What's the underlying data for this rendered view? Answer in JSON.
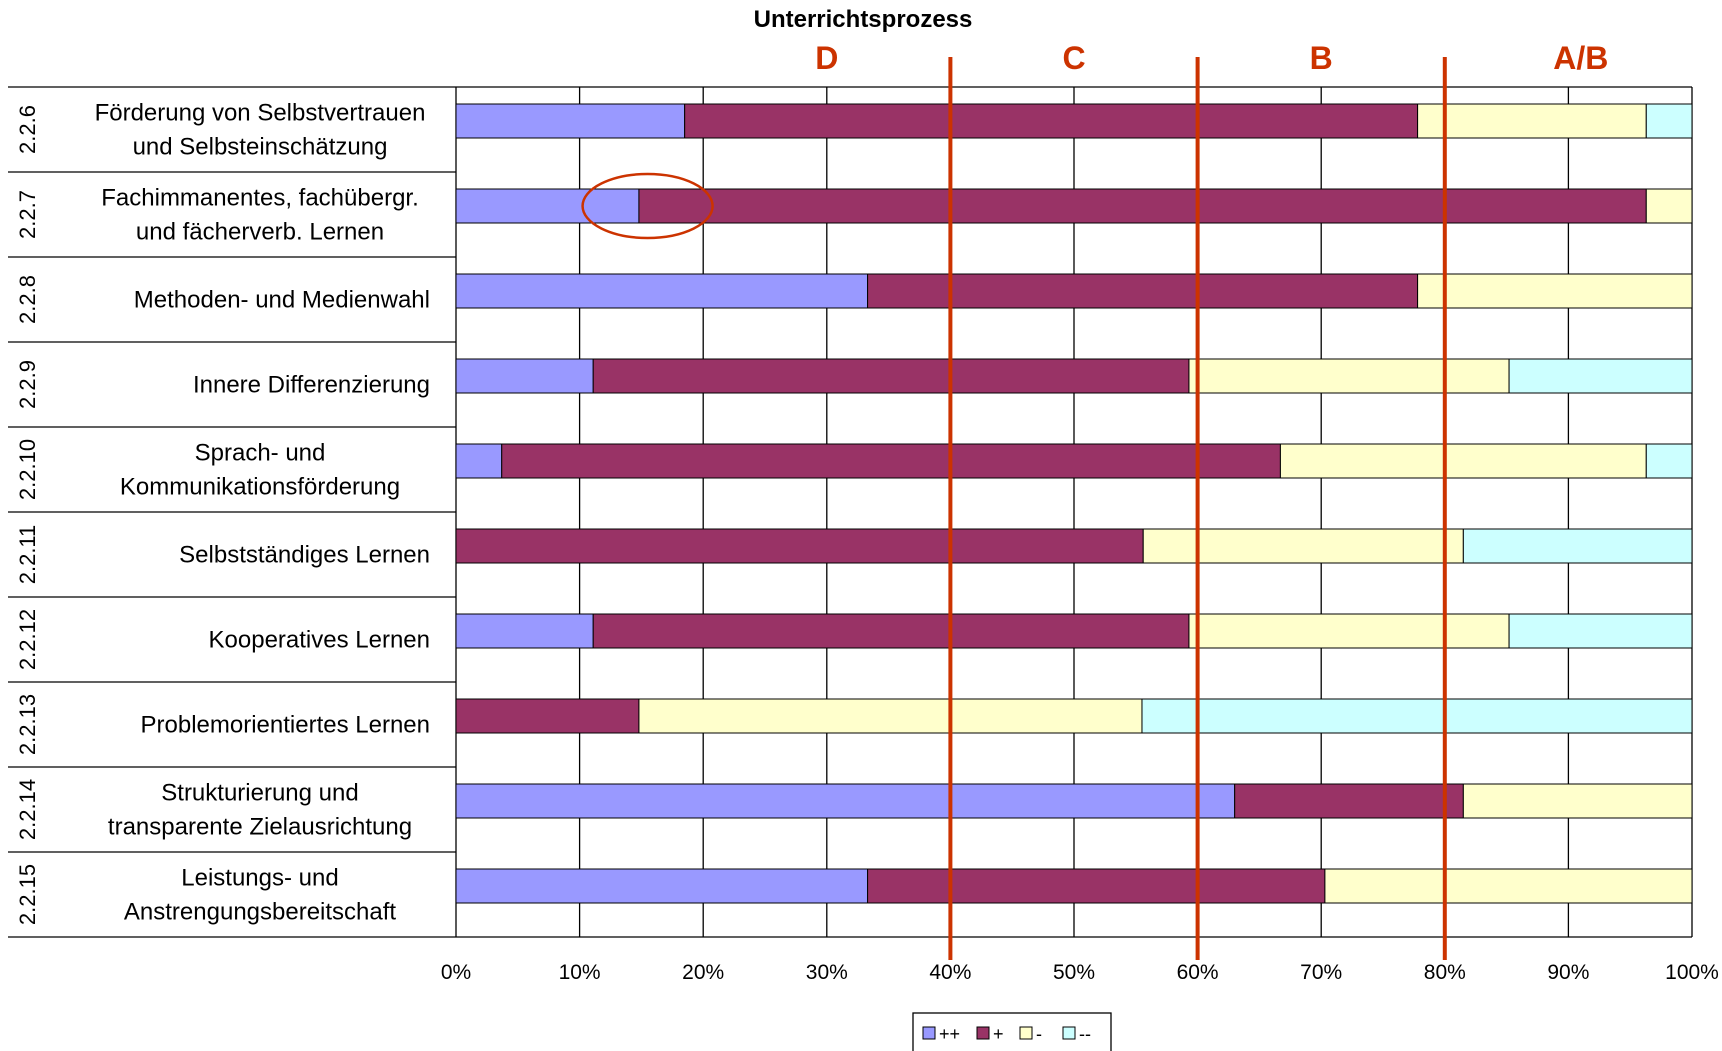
{
  "chart_data": {
    "type": "bar",
    "orientation": "horizontal",
    "stacked": "percent",
    "title": "Unterrichtsprozess",
    "categories": [
      {
        "code": "2.2.6",
        "lines": [
          "Förderung von Selbstvertrauen",
          "und Selbsteinschätzung"
        ]
      },
      {
        "code": "2.2.7",
        "lines": [
          "Fachimmanentes, fachübergr.",
          "und fächerverb. Lernen"
        ]
      },
      {
        "code": "2.2.8",
        "lines": [
          "Methoden- und Medienwahl"
        ]
      },
      {
        "code": "2.2.9",
        "lines": [
          "Innere Differenzierung"
        ]
      },
      {
        "code": "2.2.10",
        "lines": [
          "Sprach- und",
          "Kommunikationsförderung"
        ]
      },
      {
        "code": "2.2.11",
        "lines": [
          "Selbstständiges Lernen"
        ]
      },
      {
        "code": "2.2.12",
        "lines": [
          "Kooperatives Lernen"
        ]
      },
      {
        "code": "2.2.13",
        "lines": [
          "Problemorientiertes Lernen"
        ]
      },
      {
        "code": "2.2.14",
        "lines": [
          "Strukturierung und",
          "transparente Zielausrichtung"
        ]
      },
      {
        "code": "2.2.15",
        "lines": [
          "Leistungs- und",
          "Anstrengungsbereitschaft"
        ]
      }
    ],
    "series": [
      {
        "name": "++",
        "color": "#9999FF",
        "values": [
          18.5,
          14.8,
          33.3,
          11.1,
          3.7,
          0,
          11.1,
          0,
          63.0,
          33.3
        ]
      },
      {
        "name": "+",
        "color": "#993366",
        "values": [
          59.3,
          81.5,
          44.5,
          48.2,
          63.0,
          55.6,
          48.2,
          14.8,
          18.5,
          37.0
        ]
      },
      {
        "name": "-",
        "color": "#FFFFCC",
        "values": [
          18.5,
          3.7,
          22.2,
          25.9,
          29.6,
          25.9,
          25.9,
          40.7,
          18.5,
          29.7
        ]
      },
      {
        "name": "--",
        "color": "#CCFFFF",
        "values": [
          3.7,
          0,
          0,
          14.8,
          3.7,
          18.5,
          14.8,
          44.5,
          0,
          0
        ]
      }
    ],
    "xlim": [
      0,
      100
    ],
    "xticks": [
      "0%",
      "10%",
      "20%",
      "30%",
      "40%",
      "50%",
      "60%",
      "70%",
      "80%",
      "90%",
      "100%"
    ],
    "grid": true,
    "legend": "bottom",
    "zones": {
      "color": "#CC3300",
      "boundaries": [
        40,
        60,
        80
      ],
      "labels": [
        {
          "text": "D",
          "x": 30
        },
        {
          "text": "C",
          "x": 50
        },
        {
          "text": "B",
          "x": 70
        },
        {
          "text": "A/B",
          "x": 91
        }
      ]
    },
    "highlight_circle": {
      "category_index": 1,
      "x": 15.5
    }
  }
}
